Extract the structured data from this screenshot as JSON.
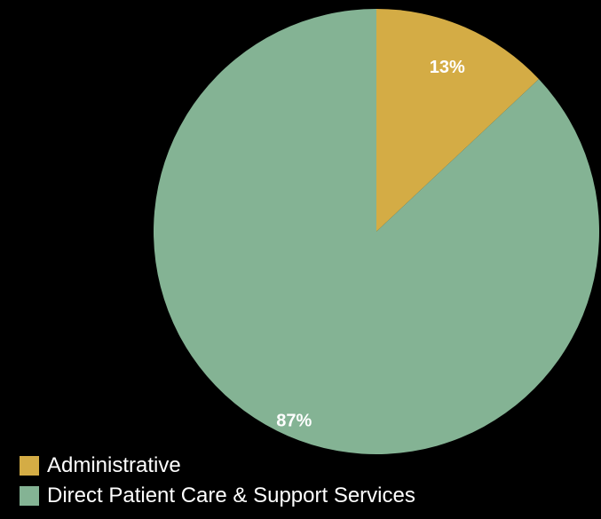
{
  "chart_data": {
    "type": "pie",
    "categories": [
      "Administrative",
      "Direct Patient Care & Support Services"
    ],
    "values": [
      13,
      87
    ],
    "labels": [
      "13%",
      "87%"
    ],
    "colors": [
      "#D4AC45",
      "#84B394"
    ],
    "title": "",
    "legend_position": "bottom-left",
    "start_angle": "12 o'clock, clockwise"
  },
  "legend": {
    "items": [
      {
        "label": "Administrative",
        "color": "#D4AC45"
      },
      {
        "label": "Direct Patient Care & Support Services",
        "color": "#84B394"
      }
    ]
  },
  "theme": {
    "background": "#000000",
    "text": "#FFFFFF"
  }
}
